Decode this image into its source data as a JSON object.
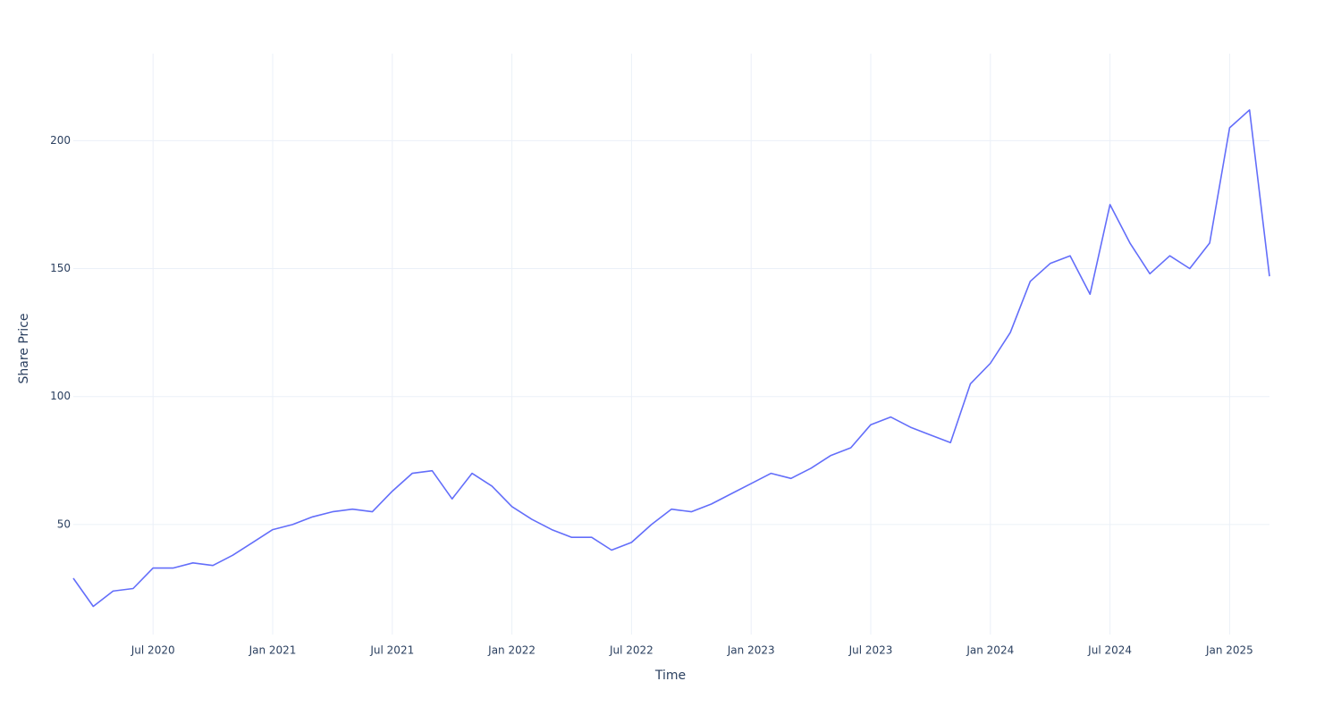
{
  "chart_data": {
    "type": "line",
    "x_label": "Time",
    "y_label": "Share Price",
    "x": [
      "2020-03",
      "2020-04",
      "2020-05",
      "2020-06",
      "2020-07",
      "2020-08",
      "2020-09",
      "2020-10",
      "2020-11",
      "2020-12",
      "2021-01",
      "2021-02",
      "2021-03",
      "2021-04",
      "2021-05",
      "2021-06",
      "2021-07",
      "2021-08",
      "2021-09",
      "2021-10",
      "2021-11",
      "2021-12",
      "2022-01",
      "2022-02",
      "2022-03",
      "2022-04",
      "2022-05",
      "2022-06",
      "2022-07",
      "2022-08",
      "2022-09",
      "2022-10",
      "2022-11",
      "2022-12",
      "2023-01",
      "2023-02",
      "2023-03",
      "2023-04",
      "2023-05",
      "2023-06",
      "2023-07",
      "2023-08",
      "2023-09",
      "2023-10",
      "2023-11",
      "2023-12",
      "2024-01",
      "2024-02",
      "2024-03",
      "2024-04",
      "2024-05",
      "2024-06",
      "2024-07",
      "2024-08",
      "2024-09",
      "2024-10",
      "2024-11",
      "2024-12",
      "2025-01",
      "2025-02",
      "2025-03"
    ],
    "values": [
      29,
      18,
      24,
      25,
      33,
      33,
      35,
      34,
      38,
      43,
      48,
      50,
      53,
      55,
      56,
      55,
      63,
      70,
      71,
      60,
      70,
      65,
      57,
      52,
      48,
      45,
      45,
      40,
      43,
      50,
      56,
      55,
      58,
      62,
      66,
      70,
      68,
      72,
      77,
      80,
      89,
      92,
      88,
      85,
      82,
      105,
      113,
      125,
      145,
      152,
      155,
      140,
      175,
      160,
      148,
      155,
      150,
      160,
      205,
      212,
      147
    ],
    "color": "#636efa",
    "xlim": [
      "2020-03",
      "2025-03"
    ],
    "xticks": [
      {
        "value": "2020-07",
        "label": "Jul 2020"
      },
      {
        "value": "2021-01",
        "label": "Jan 2021"
      },
      {
        "value": "2021-07",
        "label": "Jul 2021"
      },
      {
        "value": "2022-01",
        "label": "Jan 2022"
      },
      {
        "value": "2022-07",
        "label": "Jul 2022"
      },
      {
        "value": "2023-01",
        "label": "Jan 2023"
      },
      {
        "value": "2023-07",
        "label": "Jul 2023"
      },
      {
        "value": "2024-01",
        "label": "Jan 2024"
      },
      {
        "value": "2024-07",
        "label": "Jul 2024"
      },
      {
        "value": "2025-01",
        "label": "Jan 2025"
      }
    ],
    "ylim": [
      7,
      234
    ],
    "yticks": [
      50,
      100,
      150,
      200
    ],
    "grid": true
  }
}
